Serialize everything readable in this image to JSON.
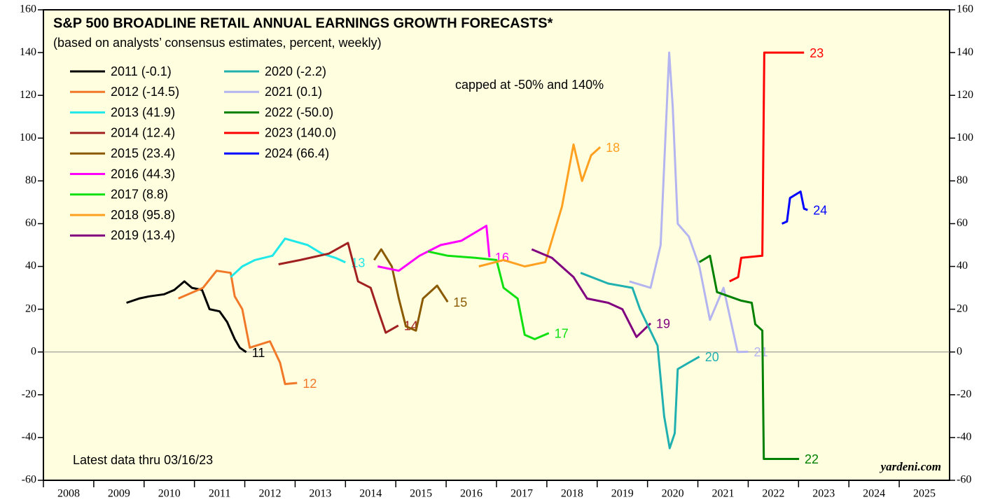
{
  "chart_data": {
    "type": "line",
    "title": "S&P 500 BROADLINE RETAIL ANNUAL EARNINGS GROWTH FORECASTS*",
    "subtitle": "(based on analysts’ consensus estimates, percent, weekly)",
    "annotations": [
      "capped at -50% and 140%",
      "Latest data thru  03/16/23",
      "yardeni.com"
    ],
    "xlim": [
      2008,
      2026
    ],
    "xticks": [
      2008,
      2009,
      2010,
      2011,
      2012,
      2013,
      2014,
      2015,
      2016,
      2017,
      2018,
      2019,
      2020,
      2021,
      2022,
      2023,
      2024,
      2025
    ],
    "ylim": [
      -60,
      160
    ],
    "yticks": [
      -60,
      -40,
      -20,
      0,
      20,
      40,
      60,
      80,
      100,
      120,
      140,
      160
    ],
    "y2lim": [
      -60,
      160
    ],
    "y2ticks": [
      -60,
      -40,
      -20,
      0,
      20,
      40,
      60,
      80,
      100,
      120,
      140,
      160
    ],
    "grid": false,
    "series": [
      {
        "name": "2011 (-0.1)",
        "end_label": "11",
        "color": "#000000",
        "x": [
          2009.65,
          2009.9,
          2010.1,
          2010.4,
          2010.6,
          2010.8,
          2010.95,
          2011.15,
          2011.3,
          2011.5,
          2011.65,
          2011.8,
          2011.9,
          2012.03
        ],
        "values": [
          23,
          25,
          26,
          27,
          29,
          33,
          30,
          29,
          20,
          19,
          14,
          6,
          2,
          -0.1
        ]
      },
      {
        "name": "2012 (-14.5)",
        "end_label": "12",
        "color": "#f07828",
        "x": [
          2010.68,
          2011.17,
          2011.44,
          2011.72,
          2011.8,
          2011.95,
          2012.1,
          2012.5,
          2012.7,
          2012.8,
          2013.04
        ],
        "values": [
          25,
          30,
          38,
          37,
          26,
          20,
          2,
          5,
          -5,
          -15,
          -14.5
        ]
      },
      {
        "name": "2013 (41.9)",
        "end_label": "13",
        "color": "#20e8e8",
        "x": [
          2011.72,
          2011.95,
          2012.2,
          2012.55,
          2012.8,
          2013.25,
          2013.53,
          2013.8,
          2014.0
        ],
        "values": [
          35,
          40,
          43,
          45,
          53,
          50,
          46,
          44,
          41.9
        ]
      },
      {
        "name": "2014 (12.4)",
        "end_label": "14",
        "color": "#a02020",
        "x": [
          2012.67,
          2013.1,
          2013.67,
          2014.05,
          2014.25,
          2014.5,
          2014.64,
          2014.8,
          2015.05
        ],
        "values": [
          41,
          43,
          46,
          51,
          33,
          30,
          20,
          9,
          12.4
        ]
      },
      {
        "name": "2015 (23.4)",
        "end_label": "15",
        "color": "#8b5a00",
        "x": [
          2014.57,
          2014.71,
          2014.92,
          2015.06,
          2015.2,
          2015.4,
          2015.54,
          2015.82,
          2016.03
        ],
        "values": [
          43,
          48,
          40,
          25,
          12,
          10,
          25,
          31,
          23.4
        ]
      },
      {
        "name": "2016 (44.3)",
        "end_label": "16",
        "color": "#ff00ff",
        "x": [
          2014.64,
          2015.06,
          2015.47,
          2015.89,
          2016.3,
          2016.8,
          2016.86
        ],
        "values": [
          40,
          38,
          45,
          50,
          52,
          59,
          44.3
        ]
      },
      {
        "name": "2017 (8.8)",
        "end_label": "17",
        "color": "#10e010",
        "x": [
          2015.64,
          2016.03,
          2016.58,
          2017.0,
          2017.14,
          2017.42,
          2017.56,
          2017.76,
          2018.04
        ],
        "values": [
          47,
          45,
          44,
          43,
          30,
          25,
          8,
          6,
          8.8
        ]
      },
      {
        "name": "2018 (95.8)",
        "end_label": "18",
        "color": "#ffa020",
        "x": [
          2016.65,
          2017.14,
          2017.56,
          2017.97,
          2018.3,
          2018.53,
          2018.7,
          2018.88,
          2019.06
        ],
        "values": [
          40,
          43,
          40,
          42,
          68,
          97,
          80,
          92,
          95.8
        ]
      },
      {
        "name": "2019 (13.4)",
        "end_label": "19",
        "color": "#800080",
        "x": [
          2017.7,
          2018.1,
          2018.53,
          2018.8,
          2019.22,
          2019.5,
          2019.78,
          2020.06
        ],
        "values": [
          48,
          44,
          35,
          25,
          23,
          20,
          7,
          13.4
        ]
      },
      {
        "name": "2020 (-2.2)",
        "end_label": "20",
        "color": "#20b0b0",
        "x": [
          2018.67,
          2019.22,
          2019.7,
          2019.85,
          2020.2,
          2020.33,
          2020.44,
          2020.54,
          2020.6,
          2020.82,
          2021.03
        ],
        "values": [
          37,
          32,
          30,
          20,
          3,
          -30,
          -45,
          -38,
          -8,
          -5,
          -2.2
        ]
      },
      {
        "name": "2021 (0.1)",
        "end_label": "21",
        "color": "#b4b4f0",
        "x": [
          2019.64,
          2020.06,
          2020.26,
          2020.43,
          2020.5,
          2020.6,
          2020.82,
          2021.03,
          2021.24,
          2021.51,
          2021.79,
          2022.0
        ],
        "values": [
          33,
          30,
          50,
          140,
          115,
          60,
          54,
          40,
          15,
          30,
          0,
          0.1
        ]
      },
      {
        "name": "2022 (-50.0)",
        "end_label": "22",
        "color": "#008000",
        "x": [
          2021.03,
          2021.24,
          2021.38,
          2021.86,
          2022.07,
          2022.14,
          2022.28,
          2022.31,
          2023.01
        ],
        "values": [
          42,
          45,
          28,
          24,
          23,
          13,
          10,
          -50,
          -50
        ]
      },
      {
        "name": "2023 (140.0)",
        "end_label": "23",
        "color": "#ff0000",
        "x": [
          2021.63,
          2021.8,
          2021.86,
          2022.28,
          2022.32,
          2023.11
        ],
        "values": [
          33,
          35,
          44,
          45,
          140,
          140
        ]
      },
      {
        "name": "2024 (66.4)",
        "end_label": "24",
        "color": "#0000ff",
        "x": [
          2022.67,
          2022.77,
          2022.83,
          2023.04,
          2023.11,
          2023.18
        ],
        "values": [
          60,
          61,
          72,
          75,
          67,
          66.4
        ]
      }
    ]
  }
}
